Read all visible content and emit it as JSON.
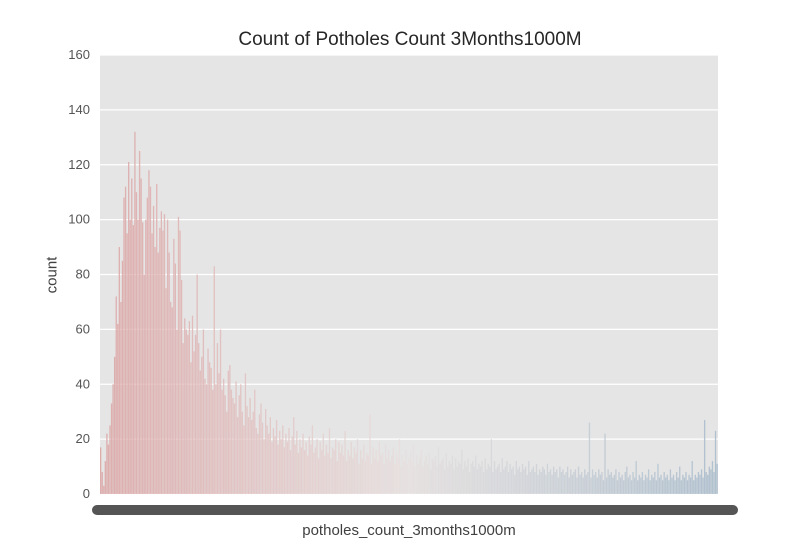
{
  "chart_data": {
    "type": "bar",
    "title": "Count of Potholes Count 3Months1000M",
    "xlabel": "potholes_count_3months1000m",
    "ylabel": "count",
    "ylim": [
      0,
      160
    ],
    "yticks": [
      0,
      20,
      40,
      60,
      80,
      100,
      120,
      140,
      160
    ],
    "grid": true,
    "legend": "none",
    "palette_start": "#dca6a6",
    "palette_mid": "#e6e0df",
    "palette_end": "#a9bccc",
    "plot_background": "#e5e5e5",
    "categories_note_values": [
      17,
      8,
      3,
      12,
      22,
      18,
      25,
      33,
      40,
      50,
      72,
      62,
      90,
      70,
      85,
      108,
      112,
      95,
      121,
      100,
      115,
      98,
      132,
      110,
      100,
      125,
      115,
      99,
      80,
      100,
      108,
      118,
      112,
      95,
      105,
      90,
      113,
      88,
      97,
      103,
      96,
      102,
      75,
      100,
      88,
      70,
      68,
      93,
      84,
      60,
      101,
      96,
      78,
      55,
      64,
      60,
      58,
      63,
      48,
      65,
      52,
      58,
      80,
      55,
      45,
      50,
      60,
      42,
      40,
      53,
      48,
      46,
      38,
      83,
      40,
      55,
      44,
      60,
      38,
      42,
      36,
      30,
      45,
      47,
      38,
      35,
      33,
      41,
      28,
      36,
      40,
      30,
      25,
      44,
      32,
      28,
      35,
      27,
      30,
      38,
      24,
      22,
      29,
      33,
      26,
      20,
      31,
      25,
      22,
      28,
      19,
      24,
      21,
      27,
      18,
      23,
      20,
      25,
      17,
      22,
      19,
      24,
      16,
      21,
      28,
      18,
      23,
      15,
      20,
      17,
      22,
      16,
      19,
      14,
      21,
      18,
      25,
      15,
      17,
      20,
      13,
      19,
      16,
      22,
      14,
      18,
      15,
      24,
      13,
      17,
      16,
      20,
      12,
      19,
      15,
      18,
      14,
      23,
      12,
      16,
      14,
      19,
      13,
      17,
      15,
      20,
      11,
      16,
      13,
      18,
      12,
      15,
      14,
      29,
      11,
      17,
      13,
      16,
      12,
      19,
      14,
      15,
      11,
      18,
      13,
      16,
      12,
      14,
      17,
      11,
      15,
      13,
      20,
      10,
      14,
      12,
      16,
      11,
      13,
      15,
      12,
      18,
      10,
      14,
      11,
      13,
      16,
      10,
      12,
      14,
      11,
      15,
      9,
      13,
      12,
      14,
      10,
      17,
      11,
      12,
      13,
      9,
      15,
      10,
      12,
      11,
      14,
      9,
      13,
      10,
      12,
      11,
      16,
      9,
      12,
      10,
      13,
      8,
      11,
      12,
      10,
      14,
      9,
      11,
      10,
      12,
      8,
      13,
      9,
      11,
      10,
      20,
      8,
      12,
      9,
      10,
      11,
      8,
      13,
      9,
      10,
      12,
      8,
      11,
      9,
      10,
      7,
      12,
      9,
      10,
      8,
      11,
      9,
      10,
      7,
      12,
      8,
      9,
      10,
      8,
      11,
      7,
      9,
      8,
      10,
      9,
      7,
      11,
      8,
      9,
      7,
      10,
      8,
      9,
      6,
      10,
      8,
      9,
      7,
      8,
      10,
      6,
      9,
      7,
      8,
      9,
      6,
      10,
      7,
      8,
      6,
      9,
      7,
      8,
      26,
      6,
      9,
      7,
      8,
      6,
      9,
      7,
      8,
      5,
      22,
      6,
      9,
      7,
      8,
      6,
      7,
      9,
      5,
      8,
      6,
      7,
      5,
      8,
      10,
      6,
      7,
      5,
      8,
      6,
      12,
      5,
      7,
      6,
      8,
      5,
      7,
      6,
      9,
      5,
      7,
      6,
      8,
      5,
      11,
      6,
      7,
      5,
      8,
      6,
      7,
      5,
      9,
      6,
      7,
      5,
      8,
      6,
      10,
      5,
      7,
      6,
      8,
      5,
      7,
      6,
      12,
      5,
      7,
      6,
      8,
      7,
      9,
      6,
      27,
      8,
      7,
      10,
      9,
      12,
      8,
      23,
      11
    ]
  }
}
